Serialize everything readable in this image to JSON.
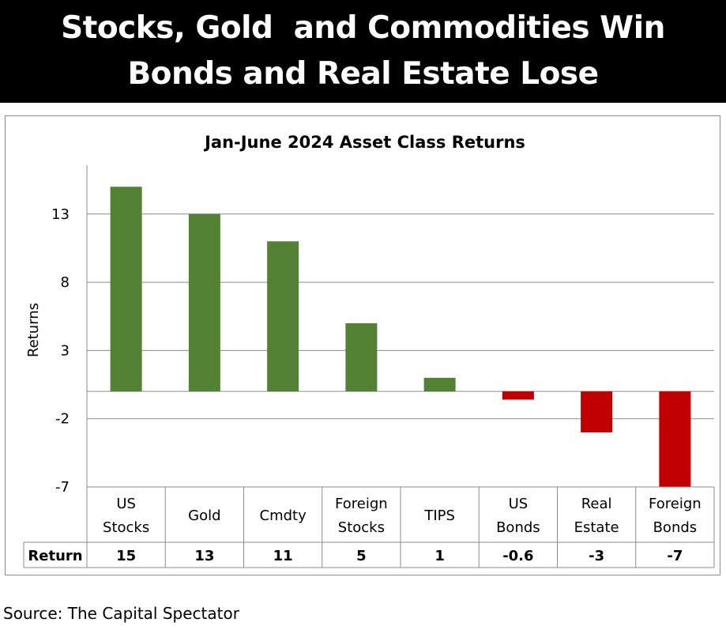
{
  "banner": {
    "line1": "Stocks, Gold  and Commodities Win",
    "line2": "Bonds and Real Estate Lose"
  },
  "source": "Source: The Capital Spectator",
  "colors": {
    "positive": "#548235",
    "negative": "#C00000",
    "banner_bg": "#000000"
  },
  "chart_data": {
    "type": "bar",
    "title": "Jan-June 2024 Asset Class Returns",
    "ylabel": "Returns",
    "xlabel": "",
    "categories": [
      [
        "US",
        "Stocks"
      ],
      [
        "Gold"
      ],
      [
        "Cmdty"
      ],
      [
        "Foreign",
        "Stocks"
      ],
      [
        "TIPS"
      ],
      [
        "US",
        "Bonds"
      ],
      [
        "Real",
        "Estate"
      ],
      [
        "Foreign",
        "Bonds"
      ]
    ],
    "series": [
      {
        "name": "Return",
        "values": [
          15,
          13,
          11,
          5,
          1,
          -0.6,
          -3,
          -7
        ]
      }
    ],
    "ylim": [
      -7,
      16
    ],
    "yticks": [
      13,
      8,
      3,
      -2,
      -7
    ],
    "grid": true,
    "data_table": true
  }
}
